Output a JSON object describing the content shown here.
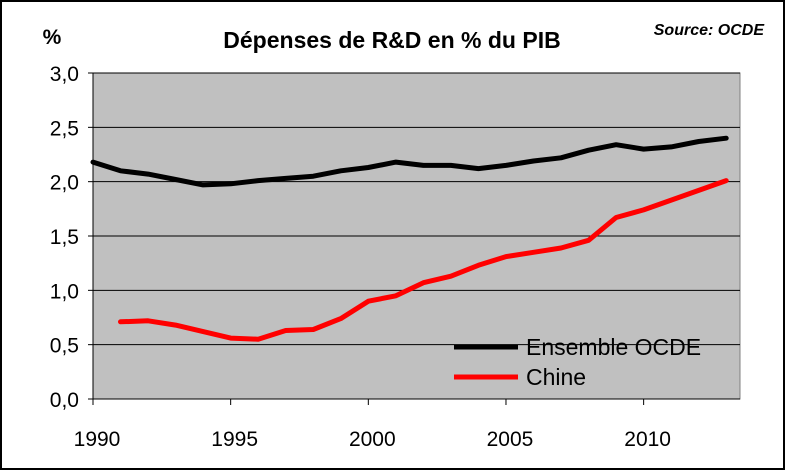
{
  "chart_data": {
    "type": "line",
    "title": "Dépenses de R&D en % du PIB",
    "source": "Source: OCDE",
    "ylabel": "%",
    "xlabel": "",
    "ylim": [
      0,
      3
    ],
    "xlim": [
      1990,
      2013.5
    ],
    "yticks": [
      "0,0",
      "0,5",
      "1,0",
      "1,5",
      "2,0",
      "2,5",
      "3,0"
    ],
    "ytick_values": [
      0,
      0.5,
      1.0,
      1.5,
      2.0,
      2.5,
      3.0
    ],
    "xticks": [
      "1990",
      "1995",
      "2000",
      "2005",
      "2010"
    ],
    "xtick_values": [
      1990,
      1995,
      2000,
      2005,
      2010
    ],
    "grid": "horizontal",
    "plot_background": "#c0c0c0",
    "legend_position": "bottom-right",
    "series": [
      {
        "name": "Ensemble OCDE",
        "color": "#000000",
        "x": [
          1990,
          1991,
          1992,
          1993,
          1994,
          1995,
          1996,
          1997,
          1998,
          1999,
          2000,
          2001,
          2002,
          2003,
          2004,
          2005,
          2006,
          2007,
          2008,
          2009,
          2010,
          2011,
          2012,
          2013
        ],
        "values": [
          2.18,
          2.1,
          2.07,
          2.02,
          1.97,
          1.98,
          2.01,
          2.03,
          2.05,
          2.1,
          2.13,
          2.18,
          2.15,
          2.15,
          2.12,
          2.15,
          2.19,
          2.22,
          2.29,
          2.34,
          2.3,
          2.32,
          2.37,
          2.4
        ]
      },
      {
        "name": "Chine",
        "color": "#ff0000",
        "x": [
          1991,
          1992,
          1993,
          1994,
          1995,
          1996,
          1997,
          1998,
          1999,
          2000,
          2001,
          2002,
          2003,
          2004,
          2005,
          2006,
          2007,
          2008,
          2009,
          2010,
          2011,
          2012,
          2013
        ],
        "values": [
          0.71,
          0.72,
          0.68,
          0.62,
          0.56,
          0.55,
          0.63,
          0.64,
          0.74,
          0.9,
          0.95,
          1.07,
          1.13,
          1.23,
          1.31,
          1.35,
          1.39,
          1.46,
          1.67,
          1.74,
          1.83,
          1.92,
          2.01
        ]
      }
    ]
  }
}
